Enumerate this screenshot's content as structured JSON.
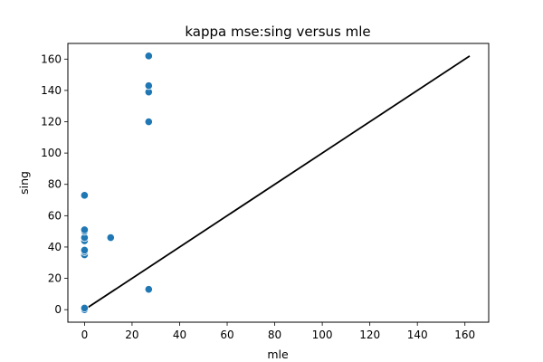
{
  "chart_data": {
    "type": "scatter",
    "title": "kappa mse:sing versus mle",
    "xlabel": "mle",
    "ylabel": "sing",
    "xlim": [
      -7,
      170
    ],
    "ylim": [
      -8,
      170
    ],
    "xticks": [
      0,
      20,
      40,
      60,
      80,
      100,
      120,
      140,
      160
    ],
    "yticks": [
      0,
      20,
      40,
      60,
      80,
      100,
      120,
      140,
      160
    ],
    "grid": false,
    "series": [
      {
        "points": [
          {
            "x": 0,
            "y": 0
          },
          {
            "x": 0,
            "y": 1
          },
          {
            "x": 0,
            "y": 35
          },
          {
            "x": 0,
            "y": 37
          },
          {
            "x": 0,
            "y": 38
          },
          {
            "x": 0,
            "y": 44
          },
          {
            "x": 0,
            "y": 46
          },
          {
            "x": 0,
            "y": 50
          },
          {
            "x": 0,
            "y": 51
          },
          {
            "x": 0,
            "y": 73
          },
          {
            "x": 11,
            "y": 46
          },
          {
            "x": 27,
            "y": 13
          },
          {
            "x": 27,
            "y": 120
          },
          {
            "x": 27,
            "y": 139
          },
          {
            "x": 27,
            "y": 143
          },
          {
            "x": 27,
            "y": 162
          }
        ],
        "color": "#1f77b4"
      }
    ],
    "reference_line": {
      "x": [
        0,
        162
      ],
      "y": [
        0,
        162
      ],
      "color": "#000000"
    }
  }
}
